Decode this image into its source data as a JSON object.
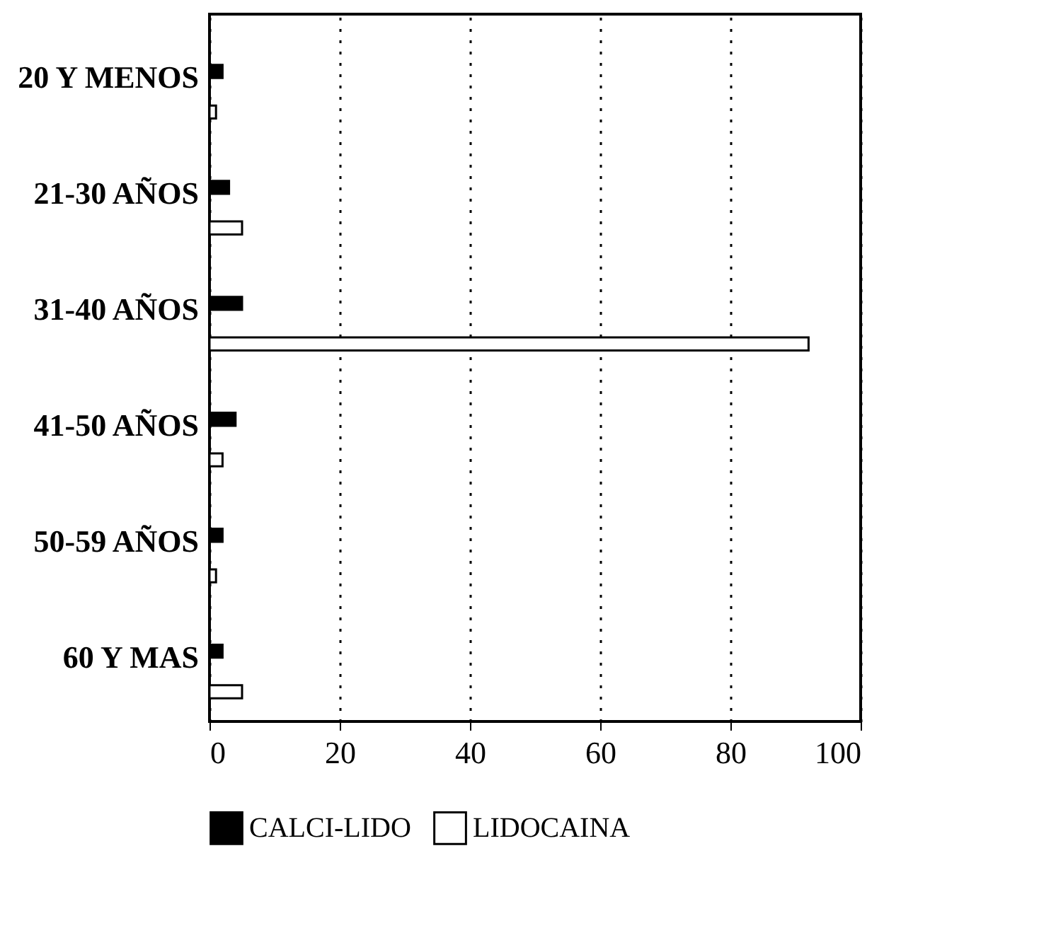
{
  "chart_data": {
    "type": "bar",
    "orientation": "horizontal",
    "categories": [
      "20 Y MENOS",
      "21-30 AÑOS",
      "31-40 AÑOS",
      "41-50 AÑOS",
      "50-59 AÑOS",
      "60 Y MAS"
    ],
    "series": [
      {
        "name": "CALCI-LIDO",
        "color": "#000000",
        "values": [
          2,
          3,
          5,
          4,
          2,
          2
        ]
      },
      {
        "name": "LIDOCAINA",
        "color": "#ffffff",
        "values": [
          1,
          5,
          92,
          2,
          1,
          5
        ]
      }
    ],
    "xlim": [
      0,
      100
    ],
    "xticks": [
      0,
      20,
      40,
      60,
      80,
      100
    ],
    "grid": "x",
    "legend": "bottom"
  }
}
